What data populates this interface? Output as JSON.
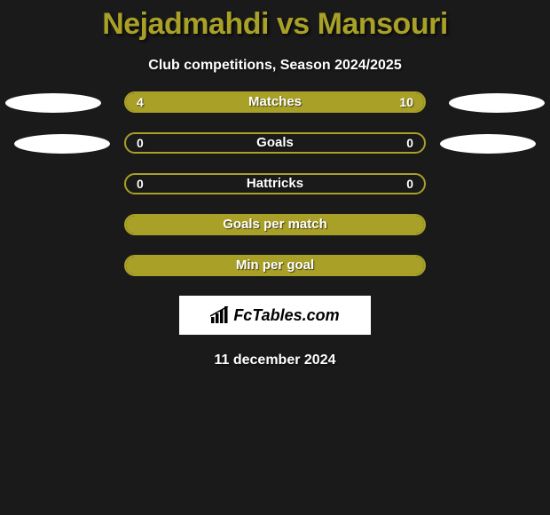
{
  "title": "Nejadmahdi vs Mansouri",
  "subtitle": "Club competitions, Season 2024/2025",
  "date": "11 december 2024",
  "brand": "FcTables.com",
  "colors": {
    "accent": "#a8a027",
    "bg": "#1a1a1a",
    "text": "#ffffff"
  },
  "rows": [
    {
      "label": "Matches",
      "left_val": "4",
      "right_val": "10",
      "left_fill_pct": 28,
      "right_fill_pct": 72,
      "show_left_ellipse": true,
      "show_right_ellipse": true,
      "ellipse_variant": 1
    },
    {
      "label": "Goals",
      "left_val": "0",
      "right_val": "0",
      "left_fill_pct": 0,
      "right_fill_pct": 0,
      "show_left_ellipse": true,
      "show_right_ellipse": true,
      "ellipse_variant": 2
    },
    {
      "label": "Hattricks",
      "left_val": "0",
      "right_val": "0",
      "left_fill_pct": 0,
      "right_fill_pct": 0,
      "show_left_ellipse": false,
      "show_right_ellipse": false
    },
    {
      "label": "Goals per match",
      "left_val": "",
      "right_val": "",
      "left_fill_pct": 100,
      "right_fill_pct": 0,
      "show_left_ellipse": false,
      "show_right_ellipse": false
    },
    {
      "label": "Min per goal",
      "left_val": "",
      "right_val": "",
      "left_fill_pct": 100,
      "right_fill_pct": 0,
      "show_left_ellipse": false,
      "show_right_ellipse": false
    }
  ]
}
